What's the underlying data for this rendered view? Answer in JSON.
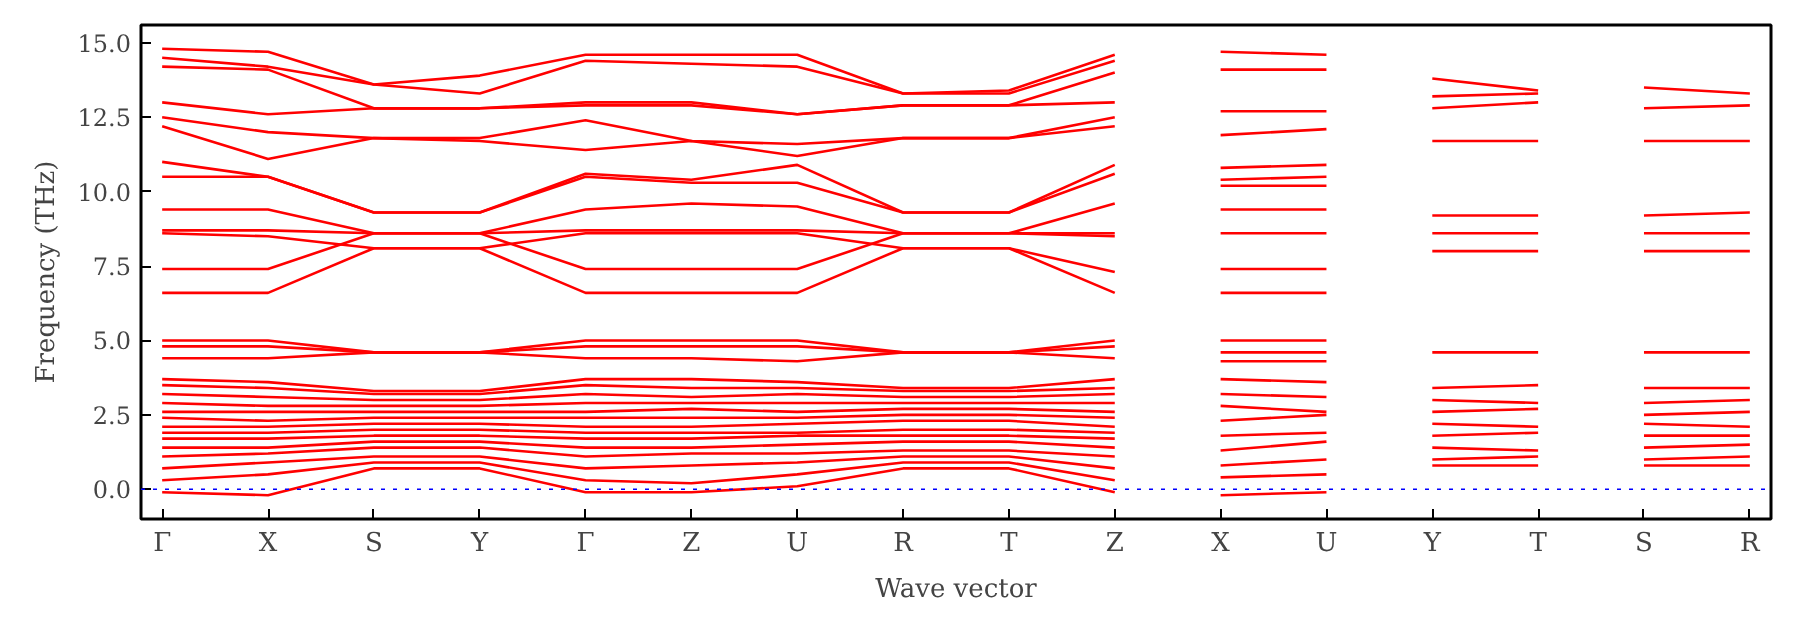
{
  "chart_data": {
    "type": "line",
    "xlabel": "Wave vector",
    "ylabel": "Frequency (THz)",
    "categories": [
      "Γ",
      "X",
      "S",
      "Y",
      "Γ",
      "Z",
      "U",
      "R",
      "T",
      "Z",
      "X",
      "U",
      "Y",
      "T",
      "S",
      "R"
    ],
    "ylim": [
      -1.0,
      15.6
    ],
    "yticks": [
      {
        "value": 0,
        "label": "0.0"
      },
      {
        "value": 2.5,
        "label": "2.5"
      },
      {
        "value": 5,
        "label": "5.0"
      },
      {
        "value": 7.5,
        "label": "7.5"
      },
      {
        "value": 10,
        "label": "10.0"
      },
      {
        "value": 12.5,
        "label": "12.5"
      },
      {
        "value": 15,
        "label": "15.0"
      }
    ],
    "ref_lines": [
      {
        "axis": "y",
        "value": 0,
        "color": "#0000ff",
        "line_style": "dotted"
      }
    ],
    "series": [
      {
        "color": "#ff0000",
        "values": [
          14.8,
          14.7,
          13.6,
          13.9,
          14.6,
          14.6,
          14.6,
          13.3,
          13.4,
          14.6,
          null,
          null,
          null,
          null,
          null,
          null
        ]
      },
      {
        "color": "#ff0000",
        "values": [
          14.5,
          14.2,
          13.6,
          13.3,
          14.4,
          14.3,
          14.2,
          13.3,
          13.3,
          14.4,
          null,
          null,
          null,
          null,
          null,
          null
        ]
      },
      {
        "color": "#ff0000",
        "values": [
          14.2,
          14.1,
          12.8,
          12.8,
          13.0,
          13.0,
          12.6,
          12.9,
          12.9,
          14.0,
          null,
          null,
          null,
          null,
          null,
          null
        ]
      },
      {
        "color": "#ff0000",
        "values": [
          13.0,
          12.6,
          12.8,
          12.8,
          12.9,
          12.9,
          12.6,
          12.9,
          12.9,
          13.0,
          null,
          null,
          null,
          null,
          null,
          null
        ]
      },
      {
        "color": "#ff0000",
        "values": [
          12.5,
          12.0,
          11.8,
          11.8,
          12.4,
          11.7,
          11.6,
          11.8,
          11.8,
          12.5,
          null,
          null,
          null,
          null,
          null,
          null
        ]
      },
      {
        "color": "#ff0000",
        "values": [
          12.2,
          11.1,
          11.8,
          11.7,
          11.4,
          11.7,
          11.2,
          11.8,
          11.8,
          12.2,
          null,
          null,
          null,
          null,
          null,
          null
        ]
      },
      {
        "color": "#ff0000",
        "values": [
          11.0,
          10.5,
          9.3,
          9.3,
          10.6,
          10.4,
          10.9,
          9.3,
          9.3,
          10.9,
          null,
          null,
          null,
          null,
          null,
          null
        ]
      },
      {
        "color": "#ff0000",
        "values": [
          10.5,
          10.5,
          9.3,
          9.3,
          10.5,
          10.3,
          10.3,
          9.3,
          9.3,
          10.6,
          null,
          null,
          null,
          null,
          null,
          null
        ]
      },
      {
        "color": "#ff0000",
        "values": [
          9.4,
          9.4,
          8.6,
          8.6,
          9.4,
          9.6,
          9.5,
          8.6,
          8.6,
          9.6,
          null,
          null,
          null,
          null,
          null,
          null
        ]
      },
      {
        "color": "#ff0000",
        "values": [
          8.7,
          8.7,
          8.6,
          8.6,
          8.7,
          8.7,
          8.7,
          8.6,
          8.6,
          8.6,
          null,
          null,
          null,
          null,
          null,
          null
        ]
      },
      {
        "color": "#ff0000",
        "values": [
          8.6,
          8.5,
          8.1,
          8.1,
          8.6,
          8.6,
          8.6,
          8.1,
          8.1,
          7.3,
          null,
          null,
          null,
          null,
          null,
          null
        ]
      },
      {
        "color": "#ff0000",
        "values": [
          7.4,
          7.4,
          8.6,
          8.6,
          7.4,
          7.4,
          7.4,
          8.6,
          8.6,
          8.5,
          null,
          null,
          null,
          null,
          null,
          null
        ]
      },
      {
        "color": "#ff0000",
        "values": [
          6.6,
          6.6,
          8.1,
          8.1,
          6.6,
          6.6,
          6.6,
          8.1,
          8.1,
          6.6,
          null,
          null,
          null,
          null,
          null,
          null
        ]
      },
      {
        "color": "#ff0000",
        "values": [
          5.0,
          5.0,
          4.6,
          4.6,
          5.0,
          5.0,
          5.0,
          4.6,
          4.6,
          5.0,
          null,
          null,
          null,
          null,
          null,
          null
        ]
      },
      {
        "color": "#ff0000",
        "values": [
          4.8,
          4.8,
          4.6,
          4.6,
          4.8,
          4.8,
          4.8,
          4.6,
          4.6,
          4.8,
          null,
          null,
          null,
          null,
          null,
          null
        ]
      },
      {
        "color": "#ff0000",
        "values": [
          4.4,
          4.4,
          4.6,
          4.6,
          4.4,
          4.4,
          4.3,
          4.6,
          4.6,
          4.4,
          null,
          null,
          null,
          null,
          null,
          null
        ]
      },
      {
        "color": "#ff0000",
        "values": [
          3.7,
          3.6,
          3.3,
          3.3,
          3.7,
          3.7,
          3.6,
          3.4,
          3.4,
          3.7,
          null,
          null,
          null,
          null,
          null,
          null
        ]
      },
      {
        "color": "#ff0000",
        "values": [
          3.5,
          3.4,
          3.2,
          3.2,
          3.5,
          3.4,
          3.4,
          3.3,
          3.3,
          3.4,
          null,
          null,
          null,
          null,
          null,
          null
        ]
      },
      {
        "color": "#ff0000",
        "values": [
          3.2,
          3.1,
          3.0,
          3.0,
          3.2,
          3.1,
          3.2,
          3.1,
          3.1,
          3.2,
          null,
          null,
          null,
          null,
          null,
          null
        ]
      },
      {
        "color": "#ff0000",
        "values": [
          2.9,
          2.8,
          2.8,
          2.8,
          2.9,
          2.9,
          2.9,
          2.9,
          2.9,
          2.9,
          null,
          null,
          null,
          null,
          null,
          null
        ]
      },
      {
        "color": "#ff0000",
        "values": [
          2.6,
          2.6,
          2.6,
          2.6,
          2.6,
          2.7,
          2.6,
          2.7,
          2.7,
          2.6,
          null,
          null,
          null,
          null,
          null,
          null
        ]
      },
      {
        "color": "#ff0000",
        "values": [
          2.4,
          2.3,
          2.4,
          2.4,
          2.4,
          2.4,
          2.4,
          2.5,
          2.5,
          2.4,
          null,
          null,
          null,
          null,
          null,
          null
        ]
      },
      {
        "color": "#ff0000",
        "values": [
          2.1,
          2.1,
          2.2,
          2.2,
          2.1,
          2.1,
          2.2,
          2.3,
          2.3,
          2.1,
          null,
          null,
          null,
          null,
          null,
          null
        ]
      },
      {
        "color": "#ff0000",
        "values": [
          1.9,
          1.9,
          2.0,
          2.0,
          1.9,
          1.9,
          1.9,
          2.0,
          2.0,
          1.9,
          null,
          null,
          null,
          null,
          null,
          null
        ]
      },
      {
        "color": "#ff0000",
        "values": [
          1.7,
          1.7,
          1.8,
          1.8,
          1.7,
          1.7,
          1.8,
          1.8,
          1.8,
          1.7,
          null,
          null,
          null,
          null,
          null,
          null
        ]
      },
      {
        "color": "#ff0000",
        "values": [
          1.4,
          1.4,
          1.6,
          1.6,
          1.4,
          1.4,
          1.5,
          1.6,
          1.6,
          1.4,
          null,
          null,
          null,
          null,
          null,
          null
        ]
      },
      {
        "color": "#ff0000",
        "values": [
          1.1,
          1.2,
          1.4,
          1.4,
          1.1,
          1.2,
          1.2,
          1.3,
          1.3,
          1.1,
          null,
          null,
          null,
          null,
          null,
          null
        ]
      },
      {
        "color": "#ff0000",
        "values": [
          0.7,
          0.9,
          1.1,
          1.1,
          0.7,
          0.8,
          0.9,
          1.1,
          1.1,
          0.7,
          null,
          null,
          null,
          null,
          null,
          null
        ]
      },
      {
        "color": "#ff0000",
        "values": [
          0.3,
          0.5,
          0.9,
          0.9,
          0.3,
          0.2,
          0.5,
          0.9,
          0.9,
          0.3,
          null,
          null,
          null,
          null,
          null,
          null
        ]
      },
      {
        "color": "#ff0000",
        "values": [
          -0.1,
          -0.2,
          0.7,
          0.7,
          -0.1,
          -0.1,
          0.1,
          0.7,
          0.7,
          -0.1,
          null,
          null,
          null,
          null,
          null,
          null
        ]
      },
      {
        "color": "#ff0000",
        "values": [
          null,
          null,
          null,
          null,
          null,
          null,
          null,
          null,
          null,
          null,
          14.7,
          14.6,
          null,
          null,
          null,
          null
        ]
      },
      {
        "color": "#ff0000",
        "values": [
          null,
          null,
          null,
          null,
          null,
          null,
          null,
          null,
          null,
          null,
          14.1,
          14.1,
          null,
          null,
          null,
          null
        ]
      },
      {
        "color": "#ff0000",
        "values": [
          null,
          null,
          null,
          null,
          null,
          null,
          null,
          null,
          null,
          null,
          12.7,
          12.7,
          null,
          null,
          null,
          null
        ]
      },
      {
        "color": "#ff0000",
        "values": [
          null,
          null,
          null,
          null,
          null,
          null,
          null,
          null,
          null,
          null,
          11.9,
          12.1,
          null,
          null,
          null,
          null
        ]
      },
      {
        "color": "#ff0000",
        "values": [
          null,
          null,
          null,
          null,
          null,
          null,
          null,
          null,
          null,
          null,
          10.8,
          10.9,
          null,
          null,
          null,
          null
        ]
      },
      {
        "color": "#ff0000",
        "values": [
          null,
          null,
          null,
          null,
          null,
          null,
          null,
          null,
          null,
          null,
          10.4,
          10.5,
          null,
          null,
          null,
          null
        ]
      },
      {
        "color": "#ff0000",
        "values": [
          null,
          null,
          null,
          null,
          null,
          null,
          null,
          null,
          null,
          null,
          10.2,
          10.2,
          null,
          null,
          null,
          null
        ]
      },
      {
        "color": "#ff0000",
        "values": [
          null,
          null,
          null,
          null,
          null,
          null,
          null,
          null,
          null,
          null,
          9.4,
          9.4,
          null,
          null,
          null,
          null
        ]
      },
      {
        "color": "#ff0000",
        "values": [
          null,
          null,
          null,
          null,
          null,
          null,
          null,
          null,
          null,
          null,
          8.6,
          8.6,
          null,
          null,
          null,
          null
        ]
      },
      {
        "color": "#ff0000",
        "values": [
          null,
          null,
          null,
          null,
          null,
          null,
          null,
          null,
          null,
          null,
          7.4,
          7.4,
          null,
          null,
          null,
          null
        ]
      },
      {
        "color": "#ff0000",
        "values": [
          null,
          null,
          null,
          null,
          null,
          null,
          null,
          null,
          null,
          null,
          6.6,
          6.6,
          null,
          null,
          null,
          null
        ]
      },
      {
        "color": "#ff0000",
        "values": [
          null,
          null,
          null,
          null,
          null,
          null,
          null,
          null,
          null,
          null,
          5.0,
          5.0,
          null,
          null,
          null,
          null
        ]
      },
      {
        "color": "#ff0000",
        "values": [
          null,
          null,
          null,
          null,
          null,
          null,
          null,
          null,
          null,
          null,
          4.6,
          4.6,
          null,
          null,
          null,
          null
        ]
      },
      {
        "color": "#ff0000",
        "values": [
          null,
          null,
          null,
          null,
          null,
          null,
          null,
          null,
          null,
          null,
          4.3,
          4.3,
          null,
          null,
          null,
          null
        ]
      },
      {
        "color": "#ff0000",
        "values": [
          null,
          null,
          null,
          null,
          null,
          null,
          null,
          null,
          null,
          null,
          3.7,
          3.6,
          null,
          null,
          null,
          null
        ]
      },
      {
        "color": "#ff0000",
        "values": [
          null,
          null,
          null,
          null,
          null,
          null,
          null,
          null,
          null,
          null,
          3.2,
          3.1,
          null,
          null,
          null,
          null
        ]
      },
      {
        "color": "#ff0000",
        "values": [
          null,
          null,
          null,
          null,
          null,
          null,
          null,
          null,
          null,
          null,
          2.8,
          2.6,
          null,
          null,
          null,
          null
        ]
      },
      {
        "color": "#ff0000",
        "values": [
          null,
          null,
          null,
          null,
          null,
          null,
          null,
          null,
          null,
          null,
          2.3,
          2.5,
          null,
          null,
          null,
          null
        ]
      },
      {
        "color": "#ff0000",
        "values": [
          null,
          null,
          null,
          null,
          null,
          null,
          null,
          null,
          null,
          null,
          1.8,
          1.9,
          null,
          null,
          null,
          null
        ]
      },
      {
        "color": "#ff0000",
        "values": [
          null,
          null,
          null,
          null,
          null,
          null,
          null,
          null,
          null,
          null,
          1.3,
          1.6,
          null,
          null,
          null,
          null
        ]
      },
      {
        "color": "#ff0000",
        "values": [
          null,
          null,
          null,
          null,
          null,
          null,
          null,
          null,
          null,
          null,
          0.8,
          1.0,
          null,
          null,
          null,
          null
        ]
      },
      {
        "color": "#ff0000",
        "values": [
          null,
          null,
          null,
          null,
          null,
          null,
          null,
          null,
          null,
          null,
          0.4,
          0.5,
          null,
          null,
          null,
          null
        ]
      },
      {
        "color": "#ff0000",
        "values": [
          null,
          null,
          null,
          null,
          null,
          null,
          null,
          null,
          null,
          null,
          -0.2,
          -0.1,
          null,
          null,
          null,
          null
        ]
      },
      {
        "color": "#ff0000",
        "values": [
          null,
          null,
          null,
          null,
          null,
          null,
          null,
          null,
          null,
          null,
          null,
          null,
          13.8,
          13.4,
          null,
          null
        ]
      },
      {
        "color": "#ff0000",
        "values": [
          null,
          null,
          null,
          null,
          null,
          null,
          null,
          null,
          null,
          null,
          null,
          null,
          13.2,
          13.3,
          null,
          null
        ]
      },
      {
        "color": "#ff0000",
        "values": [
          null,
          null,
          null,
          null,
          null,
          null,
          null,
          null,
          null,
          null,
          null,
          null,
          12.8,
          13.0,
          null,
          null
        ]
      },
      {
        "color": "#ff0000",
        "values": [
          null,
          null,
          null,
          null,
          null,
          null,
          null,
          null,
          null,
          null,
          null,
          null,
          11.7,
          11.7,
          null,
          null
        ]
      },
      {
        "color": "#ff0000",
        "values": [
          null,
          null,
          null,
          null,
          null,
          null,
          null,
          null,
          null,
          null,
          null,
          null,
          9.2,
          9.2,
          null,
          null
        ]
      },
      {
        "color": "#ff0000",
        "values": [
          null,
          null,
          null,
          null,
          null,
          null,
          null,
          null,
          null,
          null,
          null,
          null,
          8.6,
          8.6,
          null,
          null
        ]
      },
      {
        "color": "#ff0000",
        "values": [
          null,
          null,
          null,
          null,
          null,
          null,
          null,
          null,
          null,
          null,
          null,
          null,
          8.0,
          8.0,
          null,
          null
        ]
      },
      {
        "color": "#ff0000",
        "values": [
          null,
          null,
          null,
          null,
          null,
          null,
          null,
          null,
          null,
          null,
          null,
          null,
          4.6,
          4.6,
          null,
          null
        ]
      },
      {
        "color": "#ff0000",
        "values": [
          null,
          null,
          null,
          null,
          null,
          null,
          null,
          null,
          null,
          null,
          null,
          null,
          3.4,
          3.5,
          null,
          null
        ]
      },
      {
        "color": "#ff0000",
        "values": [
          null,
          null,
          null,
          null,
          null,
          null,
          null,
          null,
          null,
          null,
          null,
          null,
          3.0,
          2.9,
          null,
          null
        ]
      },
      {
        "color": "#ff0000",
        "values": [
          null,
          null,
          null,
          null,
          null,
          null,
          null,
          null,
          null,
          null,
          null,
          null,
          2.6,
          2.7,
          null,
          null
        ]
      },
      {
        "color": "#ff0000",
        "values": [
          null,
          null,
          null,
          null,
          null,
          null,
          null,
          null,
          null,
          null,
          null,
          null,
          2.2,
          2.1,
          null,
          null
        ]
      },
      {
        "color": "#ff0000",
        "values": [
          null,
          null,
          null,
          null,
          null,
          null,
          null,
          null,
          null,
          null,
          null,
          null,
          1.8,
          1.9,
          null,
          null
        ]
      },
      {
        "color": "#ff0000",
        "values": [
          null,
          null,
          null,
          null,
          null,
          null,
          null,
          null,
          null,
          null,
          null,
          null,
          1.4,
          1.3,
          null,
          null
        ]
      },
      {
        "color": "#ff0000",
        "values": [
          null,
          null,
          null,
          null,
          null,
          null,
          null,
          null,
          null,
          null,
          null,
          null,
          1.0,
          1.1,
          null,
          null
        ]
      },
      {
        "color": "#ff0000",
        "values": [
          null,
          null,
          null,
          null,
          null,
          null,
          null,
          null,
          null,
          null,
          null,
          null,
          0.8,
          0.8,
          null,
          null
        ]
      },
      {
        "color": "#ff0000",
        "values": [
          null,
          null,
          null,
          null,
          null,
          null,
          null,
          null,
          null,
          null,
          null,
          null,
          null,
          null,
          13.5,
          13.3
        ]
      },
      {
        "color": "#ff0000",
        "values": [
          null,
          null,
          null,
          null,
          null,
          null,
          null,
          null,
          null,
          null,
          null,
          null,
          null,
          null,
          12.8,
          12.9
        ]
      },
      {
        "color": "#ff0000",
        "values": [
          null,
          null,
          null,
          null,
          null,
          null,
          null,
          null,
          null,
          null,
          null,
          null,
          null,
          null,
          11.7,
          11.7
        ]
      },
      {
        "color": "#ff0000",
        "values": [
          null,
          null,
          null,
          null,
          null,
          null,
          null,
          null,
          null,
          null,
          null,
          null,
          null,
          null,
          9.2,
          9.3
        ]
      },
      {
        "color": "#ff0000",
        "values": [
          null,
          null,
          null,
          null,
          null,
          null,
          null,
          null,
          null,
          null,
          null,
          null,
          null,
          null,
          8.6,
          8.6
        ]
      },
      {
        "color": "#ff0000",
        "values": [
          null,
          null,
          null,
          null,
          null,
          null,
          null,
          null,
          null,
          null,
          null,
          null,
          null,
          null,
          8.0,
          8.0
        ]
      },
      {
        "color": "#ff0000",
        "values": [
          null,
          null,
          null,
          null,
          null,
          null,
          null,
          null,
          null,
          null,
          null,
          null,
          null,
          null,
          4.6,
          4.6
        ]
      },
      {
        "color": "#ff0000",
        "values": [
          null,
          null,
          null,
          null,
          null,
          null,
          null,
          null,
          null,
          null,
          null,
          null,
          null,
          null,
          3.4,
          3.4
        ]
      },
      {
        "color": "#ff0000",
        "values": [
          null,
          null,
          null,
          null,
          null,
          null,
          null,
          null,
          null,
          null,
          null,
          null,
          null,
          null,
          2.9,
          3.0
        ]
      },
      {
        "color": "#ff0000",
        "values": [
          null,
          null,
          null,
          null,
          null,
          null,
          null,
          null,
          null,
          null,
          null,
          null,
          null,
          null,
          2.5,
          2.6
        ]
      },
      {
        "color": "#ff0000",
        "values": [
          null,
          null,
          null,
          null,
          null,
          null,
          null,
          null,
          null,
          null,
          null,
          null,
          null,
          null,
          2.2,
          2.1
        ]
      },
      {
        "color": "#ff0000",
        "values": [
          null,
          null,
          null,
          null,
          null,
          null,
          null,
          null,
          null,
          null,
          null,
          null,
          null,
          null,
          1.8,
          1.8
        ]
      },
      {
        "color": "#ff0000",
        "values": [
          null,
          null,
          null,
          null,
          null,
          null,
          null,
          null,
          null,
          null,
          null,
          null,
          null,
          null,
          1.4,
          1.5
        ]
      },
      {
        "color": "#ff0000",
        "values": [
          null,
          null,
          null,
          null,
          null,
          null,
          null,
          null,
          null,
          null,
          null,
          null,
          null,
          null,
          1.0,
          1.1
        ]
      },
      {
        "color": "#ff0000",
        "values": [
          null,
          null,
          null,
          null,
          null,
          null,
          null,
          null,
          null,
          null,
          null,
          null,
          null,
          null,
          0.8,
          0.8
        ]
      }
    ]
  }
}
